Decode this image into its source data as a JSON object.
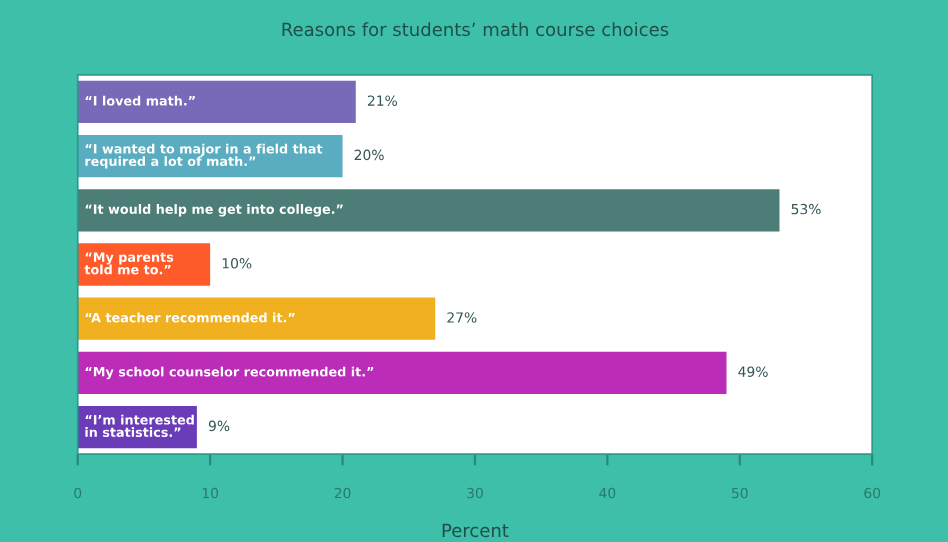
{
  "chart_data": {
    "type": "bar",
    "orientation": "horizontal",
    "title": "Reasons for students’ math course choices",
    "xlabel": "Percent",
    "categories": [
      "“I loved math.”",
      "“I wanted to major in a field that\nrequired a lot of math.”",
      "“It would help me get into college.”",
      "“My parents\ntold me to.”",
      "“A teacher recommended it.”",
      "“My school counselor recommended it.”",
      "“I’m interested\nin statistics.”"
    ],
    "values": [
      21,
      20,
      53,
      10,
      27,
      49,
      9
    ],
    "value_labels": [
      "21%",
      "20%",
      "53%",
      "10%",
      "27%",
      "49%",
      "9%"
    ],
    "colors": [
      "#7a68b8",
      "#5aadc0",
      "#4d7d77",
      "#ff5a2a",
      "#f0b020",
      "#bb2db8",
      "#6a3cb8"
    ],
    "xlim": [
      0,
      60
    ],
    "xticks": [
      0,
      10,
      20,
      30,
      40,
      50,
      60
    ],
    "grid": false,
    "legend": false
  }
}
